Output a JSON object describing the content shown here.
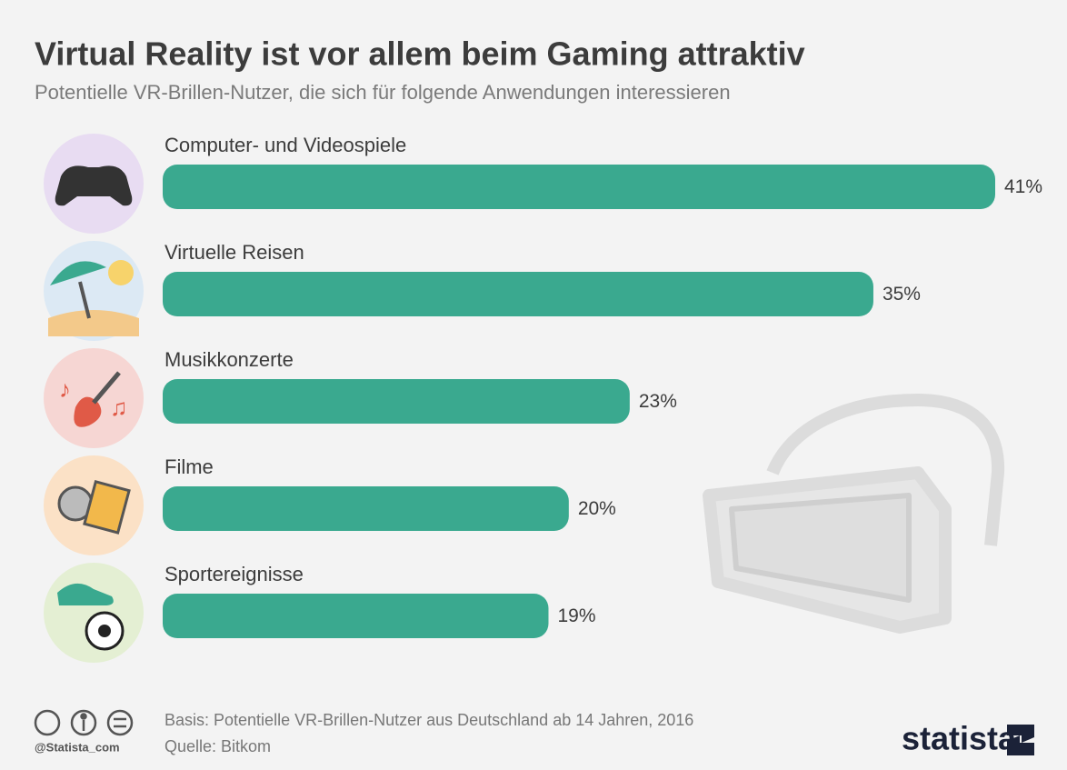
{
  "chart_data": {
    "type": "bar",
    "orientation": "horizontal",
    "title": "Virtual Reality ist vor allem beim Gaming attraktiv",
    "subtitle": "Potentielle VR-Brillen-Nutzer, die sich für folgende Anwendungen interessieren",
    "categories": [
      "Computer- und Videospiele",
      "Virtuelle Reisen",
      "Musikkonzerte",
      "Filme",
      "Sportereignisse"
    ],
    "values": [
      41,
      35,
      23,
      20,
      19
    ],
    "value_labels": [
      "41%",
      "35%",
      "23%",
      "20%",
      "19%"
    ],
    "color": "#3aa98f",
    "notes": [
      "Basis: Potentielle VR-Brillen-Nutzer aus Deutschland ab 14 Jahren, 2016",
      "Quelle: Bitkom"
    ],
    "credit": "@Statista_com",
    "brand": "statista"
  }
}
